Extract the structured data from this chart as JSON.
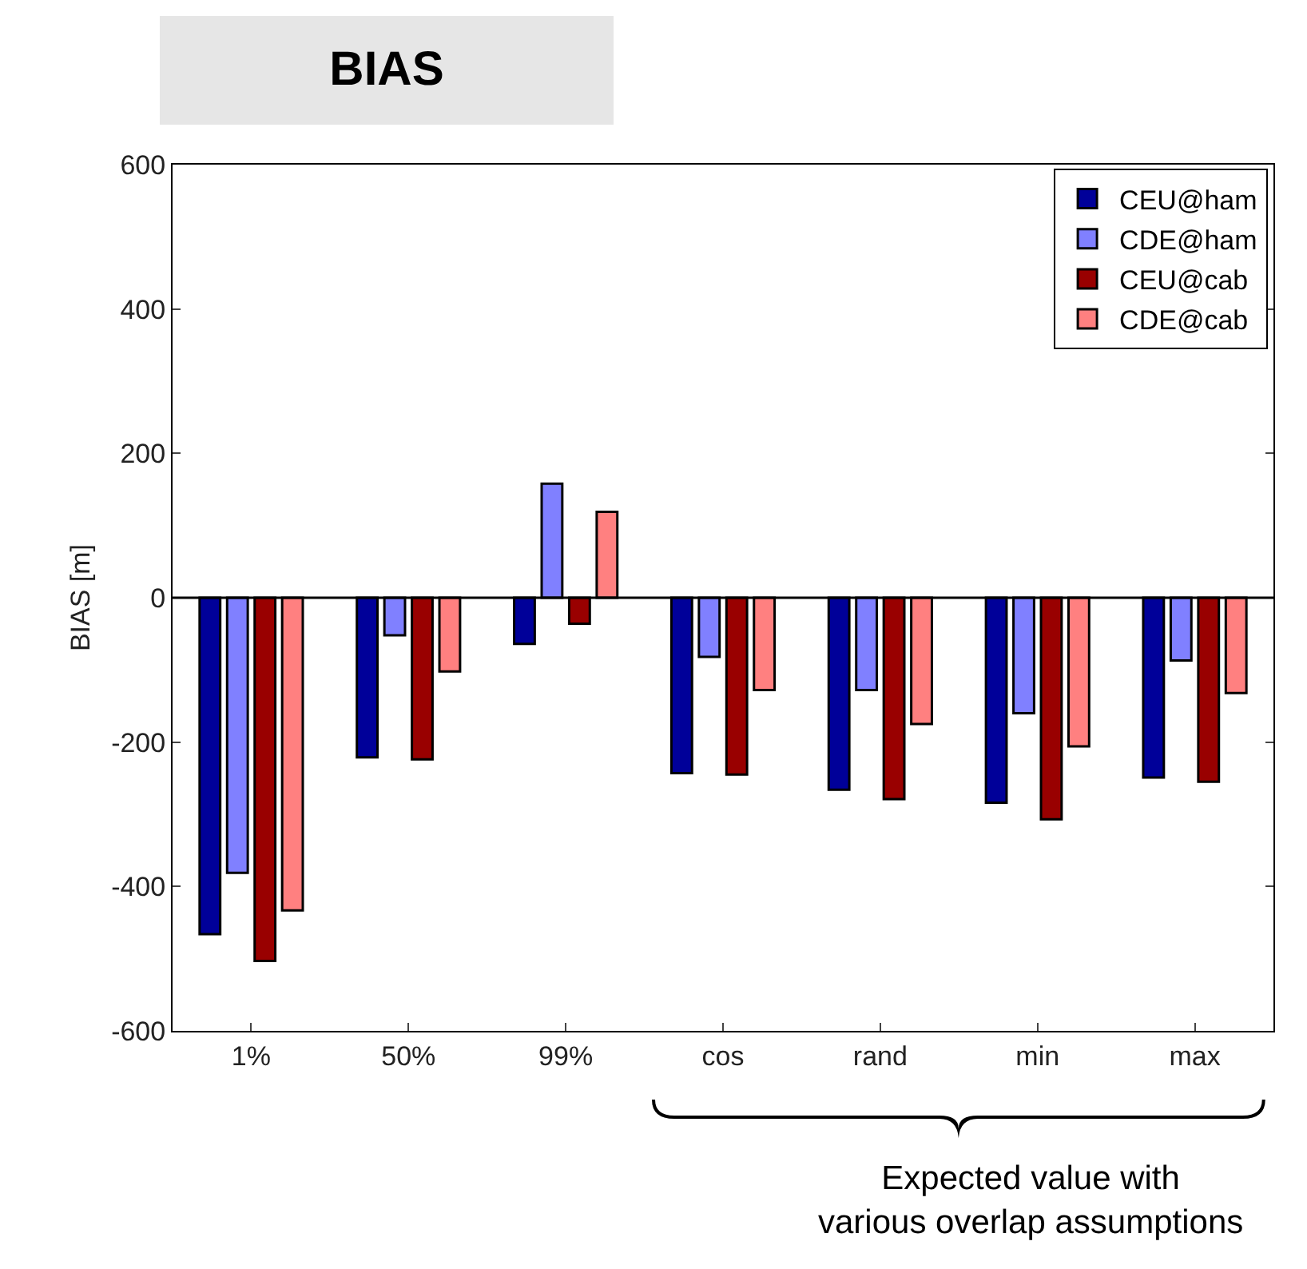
{
  "chart_data": {
    "type": "bar",
    "title": "BIAS",
    "ylabel": "BIAS [m]",
    "categories": [
      "1%",
      "50%",
      "99%",
      "cos",
      "rand",
      "min",
      "max"
    ],
    "series": [
      {
        "name": "CEU@ham",
        "color": "#000099",
        "values": [
          -466,
          -221,
          -64,
          -243,
          -266,
          -284,
          -249
        ]
      },
      {
        "name": "CDE@ham",
        "color": "#8080ff",
        "values": [
          -381,
          -52,
          158,
          -82,
          -128,
          -160,
          -87
        ]
      },
      {
        "name": "CEU@cab",
        "color": "#990000",
        "values": [
          -503,
          -224,
          -36,
          -245,
          -279,
          -307,
          -255
        ]
      },
      {
        "name": "CDE@cab",
        "color": "#ff8080",
        "values": [
          -433,
          -102,
          119,
          -128,
          -175,
          -206,
          -132
        ]
      }
    ],
    "ylim": [
      -600,
      600
    ],
    "yticks": [
      -600,
      -400,
      -200,
      0,
      200,
      400,
      600
    ],
    "grid": false,
    "ref_lines": [
      {
        "axis": "y",
        "value": 0,
        "color": "#000000"
      }
    ],
    "legend": "top right",
    "annotations": [
      "Expected value with\nvarious overlap assumptions"
    ]
  }
}
